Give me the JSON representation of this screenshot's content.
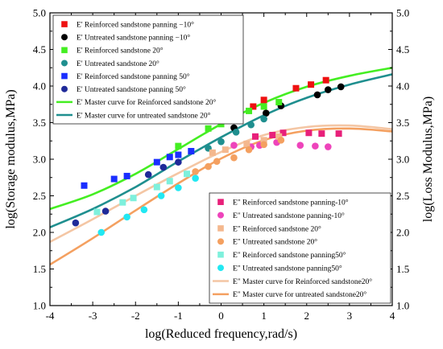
{
  "chart_data": {
    "type": "scatter",
    "xlabel": "log(Reduced frequency,rad/s)",
    "ylabel_left": "log(Storage modulus,MPa)",
    "ylabel_right": "log(Loss Modulus,MPa)",
    "xlim": [
      -4,
      4
    ],
    "ylim": [
      1.0,
      5.0
    ],
    "xticks": [
      "-4",
      "-3",
      "-2",
      "-1",
      "0",
      "1",
      "2",
      "3",
      "4"
    ],
    "yticks": [
      "1.0",
      "1.5",
      "2.0",
      "2.5",
      "3.0",
      "3.5",
      "4.0",
      "4.5",
      "5.0"
    ],
    "grid": false,
    "legend_storage_placement": "top-left",
    "legend_loss_placement": "bottom-right",
    "series": [
      {
        "name": "E' Reinforced sandstone panning −10°",
        "marker": "square",
        "color": "#ee1111",
        "x": [
          0.0,
          0.75,
          1.0,
          1.75,
          2.1,
          2.45
        ],
        "y": [
          3.5,
          3.72,
          3.81,
          3.97,
          4.02,
          4.08
        ]
      },
      {
        "name": "E' Untreated sandstone panning −10°",
        "marker": "circle",
        "color": "#000000",
        "x": [
          0.3,
          1.05,
          1.4,
          2.25,
          2.5,
          2.8
        ],
        "y": [
          3.43,
          3.63,
          3.73,
          3.88,
          3.95,
          3.99
        ]
      },
      {
        "name": "E' Reinforced sandstone 20°",
        "marker": "square",
        "color": "#44ee22",
        "x": [
          -1.0,
          -0.3,
          0.0,
          0.65,
          1.0,
          1.35
        ],
        "y": [
          3.18,
          3.42,
          3.48,
          3.66,
          3.72,
          3.78
        ]
      },
      {
        "name": "E' Untreated sandstone 20°",
        "marker": "circle",
        "color": "#1f8f8f",
        "x": [
          -0.3,
          0.0,
          0.35,
          0.7,
          1.0
        ],
        "y": [
          3.15,
          3.24,
          3.37,
          3.47,
          3.55
        ]
      },
      {
        "name": "E' Reinforced sandstone panning 50°",
        "marker": "square",
        "color": "#1a2eff",
        "x": [
          -3.2,
          -2.5,
          -2.2,
          -1.5,
          -1.2,
          -1.0,
          -0.7
        ],
        "y": [
          2.64,
          2.73,
          2.77,
          2.96,
          3.03,
          3.06,
          3.11
        ]
      },
      {
        "name": "E' Untreated sandstone panning 50°",
        "marker": "circle",
        "color": "#1f2a99",
        "x": [
          -3.4,
          -2.7,
          -1.7,
          -1.35,
          -1.0
        ],
        "y": [
          2.13,
          2.29,
          2.79,
          2.89,
          2.96
        ]
      },
      {
        "name": "E' Master curve for Reinforced sandstone 20°",
        "type": "line",
        "color": "#44ee22",
        "x": [
          -4,
          -3,
          -2,
          -1,
          0,
          1,
          2,
          3,
          4
        ],
        "y": [
          2.32,
          2.52,
          2.8,
          3.14,
          3.48,
          3.77,
          3.99,
          4.14,
          4.25
        ]
      },
      {
        "name": "E' Master curve for untreated sandstone 20°",
        "type": "line",
        "color": "#1f8f8f",
        "x": [
          -4,
          -3,
          -2,
          -1,
          0,
          1,
          2,
          3,
          4
        ],
        "y": [
          2.07,
          2.32,
          2.62,
          2.97,
          3.3,
          3.6,
          3.84,
          4.02,
          4.16
        ]
      },
      {
        "name": "E\" Reinforced sandstone panning-10°",
        "marker": "square",
        "color": "#e8207a",
        "x": [
          0.8,
          1.2,
          1.45,
          2.05,
          2.35,
          2.75
        ],
        "y": [
          3.31,
          3.33,
          3.36,
          3.36,
          3.35,
          3.35
        ]
      },
      {
        "name": "E\" Untreated sandstone panning-10°",
        "marker": "circle",
        "color": "#ee44bb",
        "x": [
          0.3,
          0.7,
          0.9,
          1.3,
          1.85,
          2.2,
          2.5
        ],
        "y": [
          3.19,
          3.17,
          3.19,
          3.23,
          3.19,
          3.18,
          3.17
        ]
      },
      {
        "name": "E\" Reinforced sandstone 20°",
        "marker": "square",
        "color": "#f4b88e",
        "x": [
          -0.2,
          0.1,
          0.6,
          1.0,
          1.35
        ],
        "y": [
          3.09,
          3.13,
          3.21,
          3.26,
          3.31
        ]
      },
      {
        "name": "E\" Untreated sandstone 20°",
        "marker": "circle",
        "color": "#f4a060",
        "x": [
          -0.6,
          -0.3,
          -0.1,
          0.3,
          0.65,
          1.0,
          1.4
        ],
        "y": [
          2.83,
          2.9,
          2.97,
          3.02,
          3.13,
          3.2,
          3.26
        ]
      },
      {
        "name": "E\" Reinforced sandstone panning50°",
        "marker": "square",
        "color": "#7ef0dc",
        "x": [
          -2.9,
          -2.3,
          -2.05,
          -1.5,
          -1.2,
          -0.8
        ],
        "y": [
          2.28,
          2.41,
          2.47,
          2.62,
          2.7,
          2.8
        ]
      },
      {
        "name": "E\" Untreated sandstone panning50°",
        "marker": "circle",
        "color": "#22e8f2",
        "x": [
          -2.8,
          -2.2,
          -1.8,
          -1.4,
          -1.0,
          -0.6
        ],
        "y": [
          2.0,
          2.21,
          2.31,
          2.5,
          2.61,
          2.74
        ]
      },
      {
        "name": "E\" Master curve for Reinforced sandstone20°",
        "type": "line",
        "color": "#f4c6a4",
        "x": [
          -4,
          -3,
          -2,
          -1,
          0,
          1,
          2,
          3,
          4
        ],
        "y": [
          1.87,
          2.18,
          2.5,
          2.81,
          3.1,
          3.33,
          3.44,
          3.46,
          3.41
        ]
      },
      {
        "name": "E\" Master curve for untreated sandstone20°",
        "type": "line",
        "color": "#f4a060",
        "x": [
          -4,
          -3,
          -2,
          -1,
          0,
          1,
          2,
          3,
          4
        ],
        "y": [
          1.56,
          1.92,
          2.3,
          2.67,
          3.01,
          3.26,
          3.39,
          3.42,
          3.38
        ]
      }
    ]
  }
}
